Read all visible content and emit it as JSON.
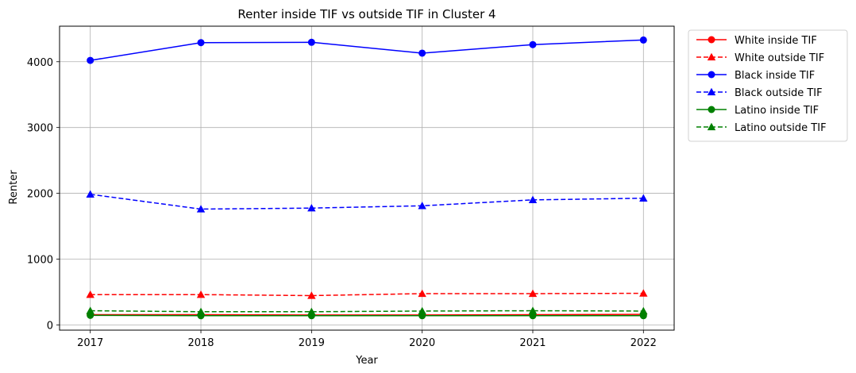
{
  "chart_data": {
    "type": "line",
    "title": "Renter inside TIF vs outside TIF in Cluster 4",
    "xlabel": "Year",
    "ylabel": "Renter",
    "x": [
      2017,
      2018,
      2019,
      2020,
      2021,
      2022
    ],
    "x_tick_labels": [
      "2017",
      "2018",
      "2019",
      "2020",
      "2021",
      "2022"
    ],
    "ylim": [
      -80,
      4540
    ],
    "y_ticks": [
      0,
      1000,
      2000,
      3000,
      4000
    ],
    "y_tick_labels": [
      "0",
      "1000",
      "2000",
      "3000",
      "4000"
    ],
    "grid": true,
    "legend_position": "outside-top-right",
    "series": [
      {
        "name": "White inside TIF",
        "color": "#ff0000",
        "linestyle": "solid",
        "marker": "circle",
        "values": [
          155,
          155,
          150,
          150,
          155,
          160
        ]
      },
      {
        "name": "White outside TIF",
        "color": "#ff0000",
        "linestyle": "dashed",
        "marker": "triangle",
        "values": [
          460,
          460,
          445,
          475,
          475,
          480
        ]
      },
      {
        "name": "Black inside TIF",
        "color": "#0000ff",
        "linestyle": "solid",
        "marker": "circle",
        "values": [
          4020,
          4290,
          4295,
          4130,
          4260,
          4330
        ]
      },
      {
        "name": "Black outside TIF",
        "color": "#0000ff",
        "linestyle": "dashed",
        "marker": "triangle",
        "values": [
          1985,
          1760,
          1775,
          1810,
          1900,
          1925
        ]
      },
      {
        "name": "Latino inside TIF",
        "color": "#008000",
        "linestyle": "solid",
        "marker": "circle",
        "values": [
          145,
          140,
          140,
          140,
          140,
          140
        ]
      },
      {
        "name": "Latino outside TIF",
        "color": "#008000",
        "linestyle": "dashed",
        "marker": "triangle",
        "values": [
          215,
          200,
          200,
          210,
          215,
          210
        ]
      }
    ]
  }
}
